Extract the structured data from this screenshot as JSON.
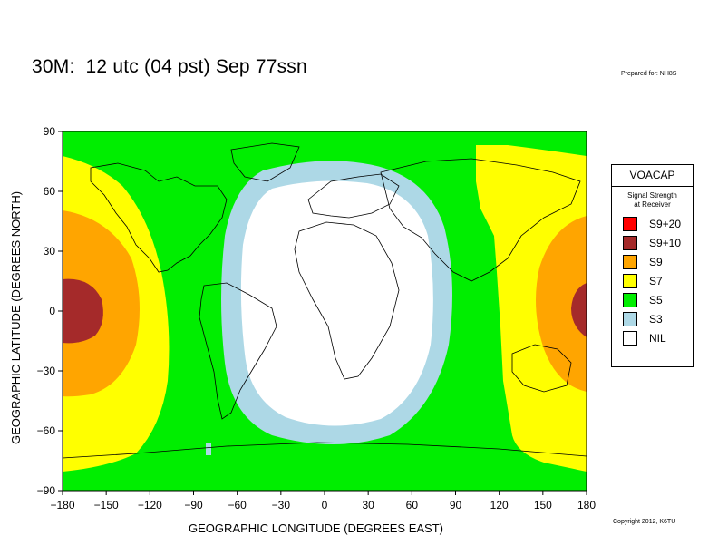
{
  "header": {
    "title": "30M:  12 utc (04 pst) Sep 77ssn",
    "prepared_for": "Prepared for: NH8S",
    "copyright": "Copyright 2012, K6TU"
  },
  "axes": {
    "xlabel": "GEOGRAPHIC LONGITUDE (DEGREES EAST)",
    "ylabel": "GEOGRAPHIC LATITUDE (DEGREES NORTH)",
    "x_ticks": [
      "−180",
      "−150",
      "−120",
      "−90",
      "−60",
      "−30",
      "0",
      "30",
      "60",
      "90",
      "120",
      "150",
      "180"
    ],
    "y_ticks": [
      "90",
      "60",
      "30",
      "0",
      "−30",
      "−60",
      "−90"
    ],
    "x_range": [
      -180,
      180
    ],
    "y_range": [
      -90,
      90
    ]
  },
  "legend": {
    "title": "VOACAP",
    "subtitle_line1": "Signal Strength",
    "subtitle_line2": "at Receiver",
    "items": [
      {
        "label": "S9+20",
        "color": "#ff0000"
      },
      {
        "label": "S9+10",
        "color": "#a52a2a"
      },
      {
        "label": "S9",
        "color": "#ffa500"
      },
      {
        "label": "S7",
        "color": "#ffff00"
      },
      {
        "label": "S5",
        "color": "#00ee00"
      },
      {
        "label": "S3",
        "color": "#add8e6"
      },
      {
        "label": "NIL",
        "color": "#ffffff"
      }
    ]
  },
  "colors": {
    "s9_plus_10": "#a52a2a",
    "s9": "#ffa500",
    "s7": "#ffff00",
    "s5": "#00ee00",
    "s3": "#add8e6",
    "nil": "#ffffff",
    "coastline": "#000000"
  }
}
